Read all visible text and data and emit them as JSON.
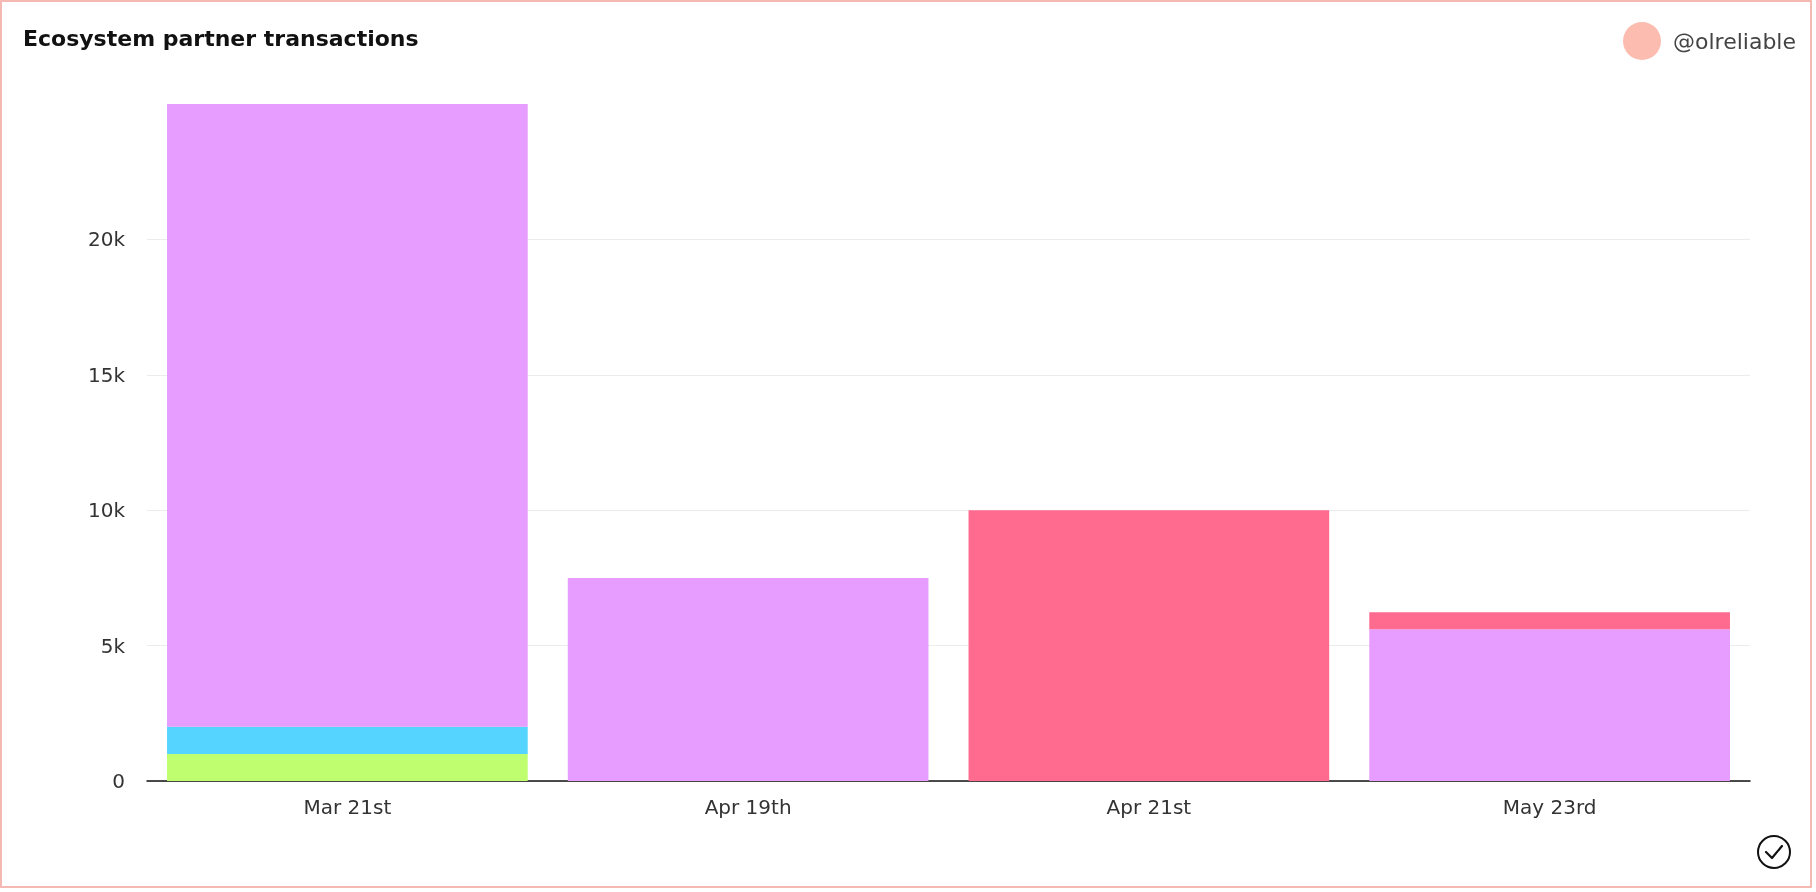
{
  "chart_data": {
    "type": "bar",
    "title": "Ecosystem partner transactions",
    "annotations": [
      "@olreliable"
    ],
    "categories": [
      "Mar 21st",
      "Apr 19th",
      "Apr 21st",
      "May 23rd"
    ],
    "stacked": true,
    "series": [
      {
        "color": "#bfff6f",
        "values": [
          1000,
          null,
          null,
          null
        ]
      },
      {
        "color": "#55d4ff",
        "values": [
          1000,
          null,
          null,
          null
        ]
      },
      {
        "color": "#e79cff",
        "values": [
          23000,
          7500,
          null,
          5600
        ]
      },
      {
        "color": "#ff6a8f",
        "values": [
          null,
          null,
          10000,
          630
        ]
      }
    ],
    "ylim": [
      0,
      25000
    ],
    "yticks": [
      0,
      {
        "value": 5000,
        "label": "5k"
      },
      {
        "value": 10000,
        "label": "10k"
      },
      {
        "value": 15000,
        "label": "15k"
      },
      {
        "value": 20000,
        "label": "20k"
      }
    ],
    "grid": "y"
  }
}
